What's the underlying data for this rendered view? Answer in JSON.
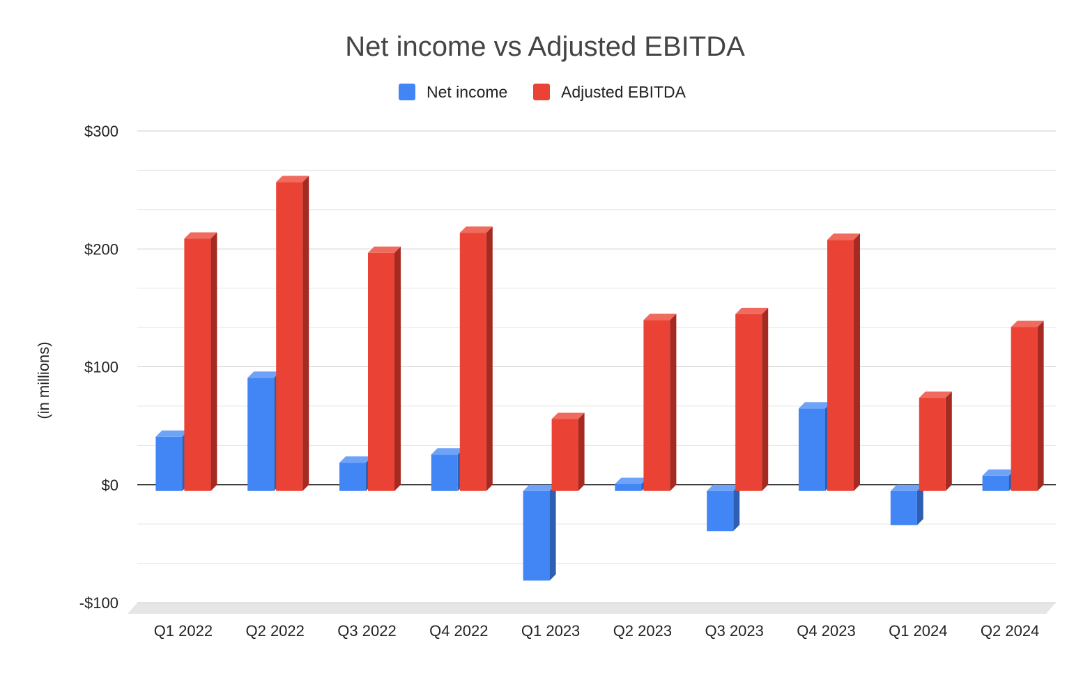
{
  "chart_data": {
    "type": "bar",
    "title": "Net income vs Adjusted EBITDA",
    "ylabel": "(in millions)",
    "xlabel": "",
    "ylim": [
      -100,
      300
    ],
    "y_ticks": [
      {
        "value": 300,
        "label": "$300"
      },
      {
        "value": 200,
        "label": "$200"
      },
      {
        "value": 100,
        "label": "$100"
      },
      {
        "value": 0,
        "label": "$0"
      },
      {
        "value": -100,
        "label": "-$100"
      }
    ],
    "minor_gridlines": [
      -66.7,
      -33.3,
      33.3,
      66.7,
      133.3,
      166.7,
      233.3,
      266.7
    ],
    "grid": true,
    "legend_position": "top-center",
    "categories": [
      "Q1 2022",
      "Q2 2022",
      "Q3 2022",
      "Q4 2022",
      "Q1 2023",
      "Q2 2023",
      "Q3 2023",
      "Q4 2023",
      "Q1 2024",
      "Q2 2024"
    ],
    "series": [
      {
        "name": "Net income",
        "color": "#4285f4",
        "side_color": "#2f5fb3",
        "top_color": "#6fa3f7",
        "values": [
          46,
          96,
          24,
          31,
          -76,
          6,
          -34,
          70,
          -29,
          13
        ]
      },
      {
        "name": "Adjusted EBITDA",
        "color": "#ea4335",
        "side_color": "#a52a21",
        "top_color": "#f06a5e",
        "values": [
          214,
          262,
          202,
          219,
          61,
          145,
          150,
          213,
          79,
          139
        ]
      }
    ]
  }
}
